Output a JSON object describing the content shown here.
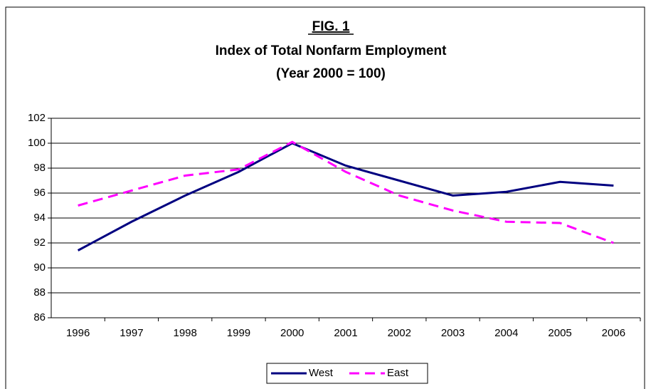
{
  "chart_data": {
    "type": "line",
    "title_lines": [
      "FIG. 1",
      "Index of Total Nonfarm Employment",
      "(Year 2000 = 100)"
    ],
    "categories": [
      "1996",
      "1997",
      "1998",
      "1999",
      "2000",
      "2001",
      "2002",
      "2003",
      "2004",
      "2005",
      "2006"
    ],
    "series": [
      {
        "name": "West",
        "color": "#000080",
        "dashed": false,
        "values": [
          91.4,
          93.7,
          95.8,
          97.7,
          100.0,
          98.2,
          97.0,
          95.8,
          96.1,
          96.9,
          96.6
        ]
      },
      {
        "name": "East",
        "color": "#ff00ff",
        "dashed": true,
        "values": [
          95.0,
          96.2,
          97.4,
          97.9,
          100.1,
          97.7,
          95.8,
          94.6,
          93.7,
          93.6,
          92.0
        ]
      }
    ],
    "ylim": [
      86,
      102
    ],
    "yticks": [
      86,
      88,
      90,
      92,
      94,
      96,
      98,
      100,
      102
    ],
    "grid": true,
    "legend": "bottom"
  }
}
